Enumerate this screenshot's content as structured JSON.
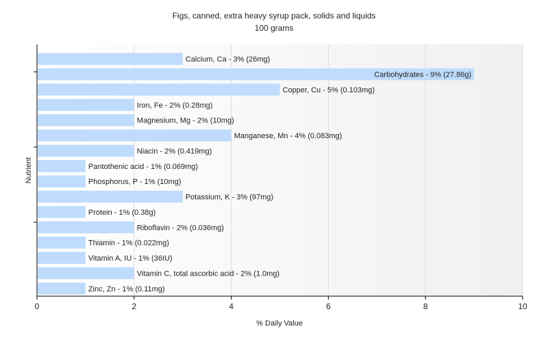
{
  "chart_data": {
    "type": "bar",
    "orientation": "horizontal",
    "title": "Figs, canned, extra heavy syrup pack, solids and liquids",
    "subtitle": "100 grams",
    "xlabel": "% Daily Value",
    "ylabel": "Nutrient",
    "xlim": [
      0,
      10
    ],
    "xticks": [
      "0",
      "2",
      "4",
      "6",
      "8",
      "10"
    ],
    "grid": true,
    "categories": [
      "Calcium, Ca",
      "Carbohydrates",
      "Copper, Cu",
      "Iron, Fe",
      "Magnesium, Mg",
      "Manganese, Mn",
      "Niacin",
      "Pantothenic acid",
      "Phosphorus, P",
      "Potassium, K",
      "Protein",
      "Riboflavin",
      "Thiamin",
      "Vitamin A, IU",
      "Vitamin C, total ascorbic acid",
      "Zinc, Zn"
    ],
    "values": [
      3,
      9,
      5,
      2,
      2,
      4,
      2,
      1,
      1,
      3,
      1,
      2,
      1,
      1,
      2,
      1
    ],
    "labels": [
      "Calcium, Ca - 3% (26mg)",
      "Carbohydrates - 9% (27.86g)",
      "Copper, Cu - 5% (0.103mg)",
      "Iron, Fe - 2% (0.28mg)",
      "Magnesium, Mg - 2% (10mg)",
      "Manganese, Mn - 4% (0.083mg)",
      "Niacin - 2% (0.419mg)",
      "Pantothenic acid - 1% (0.069mg)",
      "Phosphorus, P - 1% (10mg)",
      "Potassium, K - 3% (97mg)",
      "Protein - 1% (0.38g)",
      "Riboflavin - 2% (0.036mg)",
      "Thiamin - 1% (0.022mg)",
      "Vitamin A, IU - 1% (36IU)",
      "Vitamin C, total ascorbic acid - 2% (1.0mg)",
      "Zinc, Zn - 1% (0.11mg)"
    ],
    "colors": {
      "bar": "#bfdcfd",
      "grid": "#dddddd",
      "axis": "#000000"
    }
  }
}
